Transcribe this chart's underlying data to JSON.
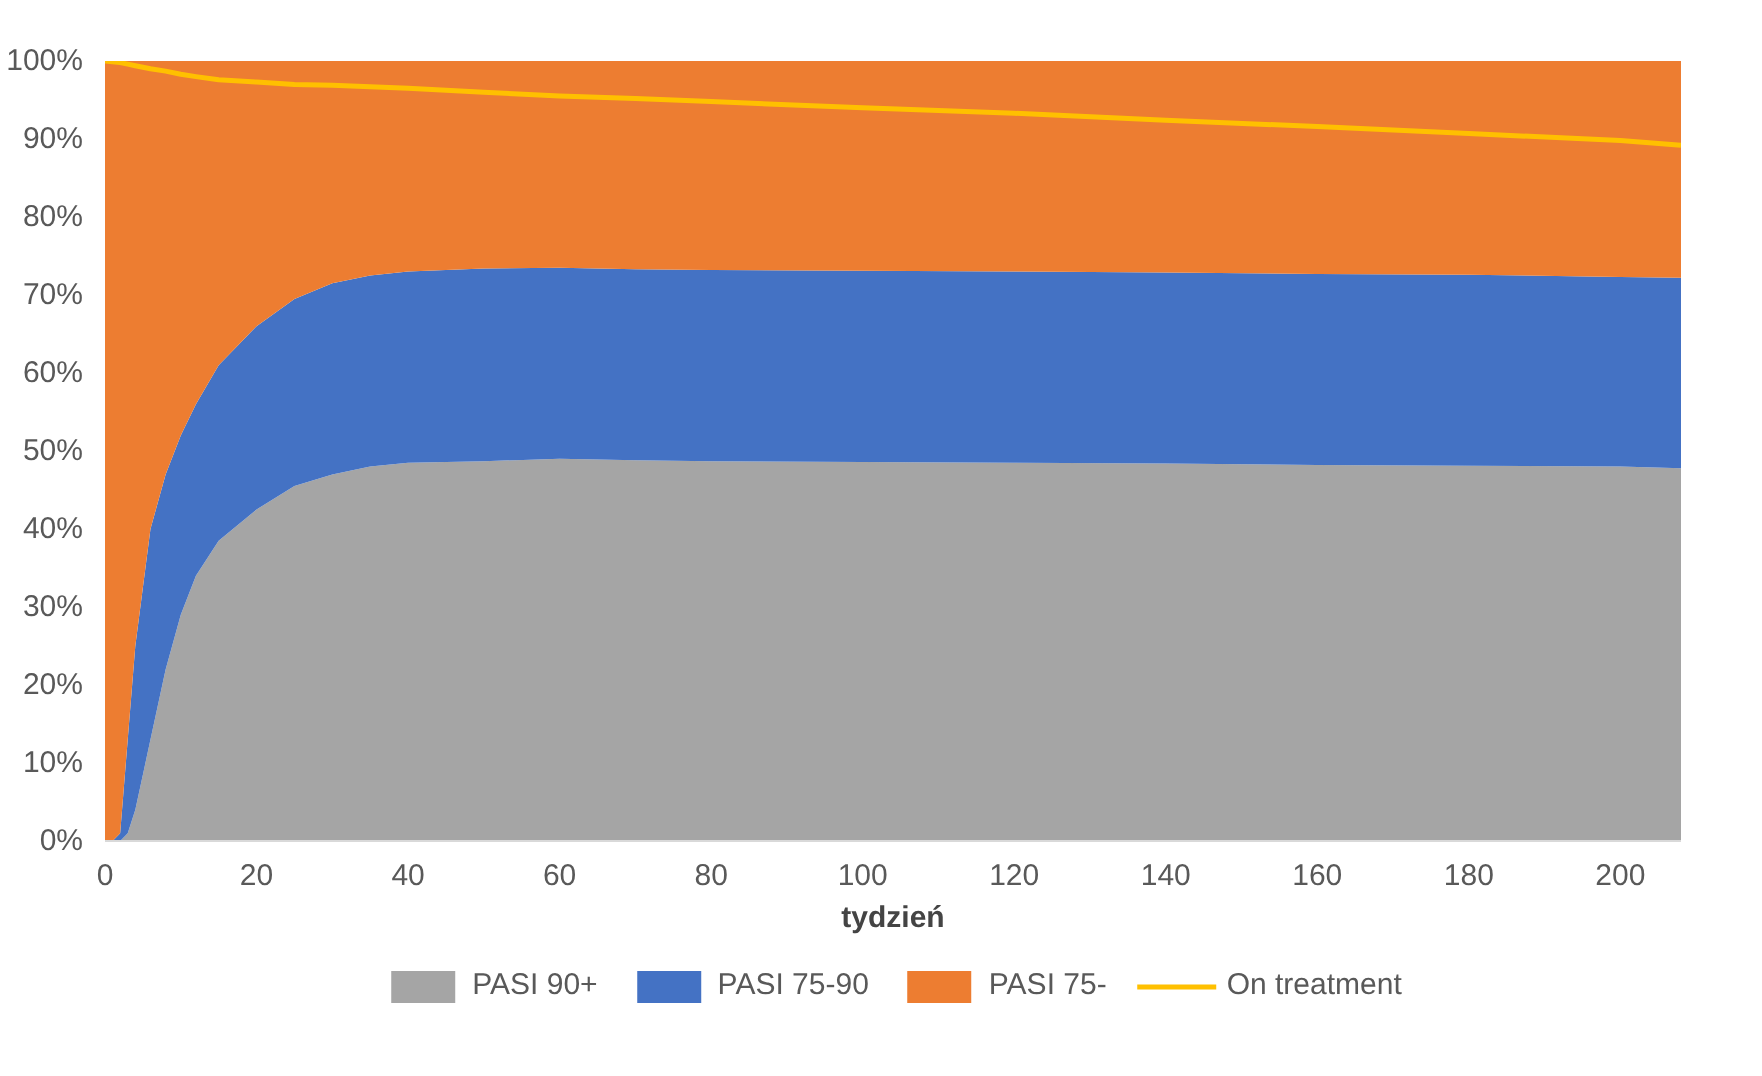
{
  "chart_data": {
    "type": "area",
    "stacked": true,
    "xlabel": "tydzień",
    "x": [
      0,
      1,
      2,
      3,
      4,
      6,
      8,
      10,
      12,
      15,
      20,
      25,
      30,
      35,
      40,
      50,
      60,
      70,
      80,
      100,
      120,
      140,
      160,
      180,
      200,
      208
    ],
    "series": [
      {
        "name": "PASI 90+",
        "color": "#a5a5a5",
        "values": [
          0,
          0,
          0,
          1,
          4,
          13,
          22,
          29,
          34,
          38.5,
          42.5,
          45.5,
          47,
          48,
          48.5,
          48.7,
          49,
          48.8,
          48.7,
          48.6,
          48.5,
          48.4,
          48.2,
          48.1,
          48,
          47.8
        ]
      },
      {
        "name": "PASI 75-90",
        "color": "#4472c4",
        "values": [
          0,
          0,
          1,
          12,
          21,
          27,
          25,
          23,
          22,
          22.5,
          23.5,
          24,
          24.5,
          24.5,
          24.5,
          24.7,
          24.5,
          24.5,
          24.5,
          24.5,
          24.5,
          24.5,
          24.5,
          24.5,
          24.3,
          24.4
        ]
      },
      {
        "name": "PASI 75-",
        "color": "#ed7d31",
        "values": [
          100,
          100,
          99,
          87,
          75,
          60,
          53,
          48,
          44,
          39,
          34,
          30.5,
          28.5,
          27.5,
          27,
          26.6,
          26.5,
          26.7,
          26.8,
          26.9,
          27,
          27.1,
          27.3,
          27.4,
          27.7,
          27.8
        ]
      },
      {
        "name": "On treatment",
        "type": "line",
        "color": "#ffc000",
        "values": [
          100,
          99.9,
          99.8,
          99.6,
          99.4,
          99,
          98.7,
          98.3,
          98,
          97.6,
          97.3,
          97,
          96.9,
          96.7,
          96.5,
          96,
          95.5,
          95.2,
          94.8,
          94,
          93.3,
          92.4,
          91.6,
          90.7,
          89.8,
          89.2
        ]
      }
    ],
    "xlim": [
      0,
      208
    ],
    "xticks": [
      0,
      20,
      40,
      60,
      80,
      100,
      120,
      140,
      160,
      180,
      200
    ],
    "ylim": [
      0,
      100
    ],
    "yticks": [
      {
        "value": 0,
        "label": "0%"
      },
      {
        "value": 10,
        "label": "10%"
      },
      {
        "value": 20,
        "label": "20%"
      },
      {
        "value": 30,
        "label": "30%"
      },
      {
        "value": 40,
        "label": "40%"
      },
      {
        "value": 50,
        "label": "50%"
      },
      {
        "value": 60,
        "label": "60%"
      },
      {
        "value": 70,
        "label": "70%"
      },
      {
        "value": 80,
        "label": "80%"
      },
      {
        "value": 90,
        "label": "90%"
      },
      {
        "value": 100,
        "label": "100%"
      }
    ],
    "grid": false,
    "legend": "bottom"
  }
}
